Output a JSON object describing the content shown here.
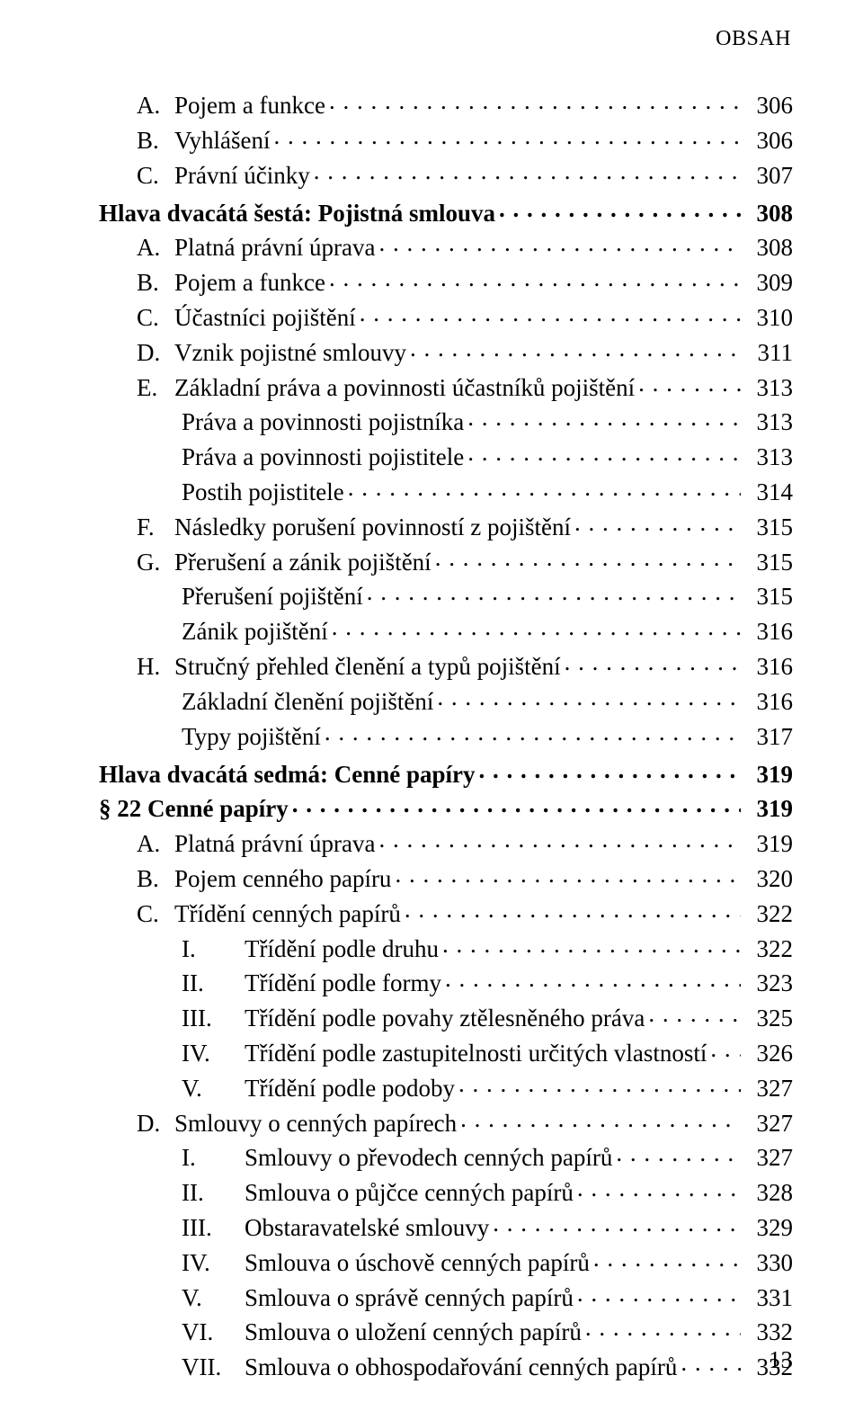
{
  "meta": {
    "header_label": "OBSAH",
    "page_number": "13",
    "colors": {
      "text": "#000000",
      "background": "#ffffff"
    },
    "font": {
      "family": "Times New Roman",
      "base_size_pt": 20
    }
  },
  "toc": [
    {
      "indent": "ind1",
      "marker": "A.",
      "text": "Pojem a funkce",
      "page": "306"
    },
    {
      "indent": "ind1",
      "marker": "B.",
      "text": "Vyhlášení",
      "page": "306"
    },
    {
      "indent": "ind1",
      "marker": "C.",
      "text": "Právní účinky",
      "page": "307"
    },
    {
      "indent": "ind0",
      "bold": true,
      "gap": true,
      "text": "Hlava dvacátá šestá: Pojistná smlouva",
      "page": "308"
    },
    {
      "indent": "ind1",
      "marker": "A.",
      "text": "Platná právní úprava",
      "page": "308"
    },
    {
      "indent": "ind1",
      "marker": "B.",
      "text": "Pojem a funkce",
      "page": "309"
    },
    {
      "indent": "ind1",
      "marker": "C.",
      "text": "Účastníci pojištění",
      "page": "310"
    },
    {
      "indent": "ind1",
      "marker": "D.",
      "text": "Vznik pojistné smlouvy",
      "page": "311"
    },
    {
      "indent": "ind1",
      "marker": "E.",
      "text": "Základní práva a povinnosti účastníků pojištění",
      "page": "313"
    },
    {
      "indent": "ind2",
      "text": "Práva a povinnosti pojistníka",
      "page": "313"
    },
    {
      "indent": "ind2",
      "text": "Práva a povinnosti pojistitele",
      "page": "313"
    },
    {
      "indent": "ind2",
      "text": "Postih pojistitele",
      "page": "314"
    },
    {
      "indent": "ind1",
      "marker": "F.",
      "text": "Následky porušení povinností z pojištění",
      "page": "315"
    },
    {
      "indent": "ind1",
      "marker": "G.",
      "text": "Přerušení a zánik pojištění",
      "page": "315"
    },
    {
      "indent": "ind2",
      "text": "Přerušení pojištění",
      "page": "315"
    },
    {
      "indent": "ind2",
      "text": "Zánik pojištění",
      "page": "316"
    },
    {
      "indent": "ind1",
      "marker": "H.",
      "text": "Stručný přehled členění a typů pojištění",
      "page": "316"
    },
    {
      "indent": "ind2",
      "text": "Základní členění pojištění",
      "page": "316"
    },
    {
      "indent": "ind2",
      "text": "Typy pojištění",
      "page": "317"
    },
    {
      "indent": "ind0",
      "bold": true,
      "gap": true,
      "text": "Hlava dvacátá sedmá: Cenné papíry",
      "page": "319"
    },
    {
      "indent": "ind0",
      "bold": true,
      "text": "§ 22 Cenné papíry",
      "page": "319"
    },
    {
      "indent": "ind1",
      "marker": "A.",
      "text": "Platná právní úprava",
      "page": "319"
    },
    {
      "indent": "ind1",
      "marker": "B.",
      "text": "Pojem cenného papíru",
      "page": "320"
    },
    {
      "indent": "ind1",
      "marker": "C.",
      "text": "Třídění cenných papírů",
      "page": "322"
    },
    {
      "indent": "ind3",
      "roman": "I.",
      "text": "Třídění podle druhu",
      "page": "322"
    },
    {
      "indent": "ind3",
      "roman": "II.",
      "text": "Třídění podle formy",
      "page": "323"
    },
    {
      "indent": "ind3",
      "roman": "III.",
      "text": "Třídění podle povahy ztělesněného práva",
      "page": "325"
    },
    {
      "indent": "ind3",
      "roman": "IV.",
      "text": "Třídění podle zastupitelnosti určitých vlastností",
      "page": "326"
    },
    {
      "indent": "ind3",
      "roman": "V.",
      "text": "Třídění podle podoby",
      "page": "327"
    },
    {
      "indent": "ind1",
      "marker": "D.",
      "text": "Smlouvy o cenných papírech",
      "page": "327"
    },
    {
      "indent": "ind3",
      "roman": "I.",
      "text": "Smlouvy o převodech cenných papírů",
      "page": "327"
    },
    {
      "indent": "ind3",
      "roman": "II.",
      "text": "Smlouva o půjčce cenných papírů",
      "page": "328"
    },
    {
      "indent": "ind3",
      "roman": "III.",
      "text": "Obstaravatelské smlouvy",
      "page": "329"
    },
    {
      "indent": "ind3",
      "roman": "IV.",
      "text": "Smlouva o úschově cenných papírů",
      "page": "330"
    },
    {
      "indent": "ind3",
      "roman": "V.",
      "text": "Smlouva o správě cenných papírů",
      "page": "331"
    },
    {
      "indent": "ind3",
      "roman": "VI.",
      "text": "Smlouva o uložení cenných papírů",
      "page": "332"
    },
    {
      "indent": "ind3",
      "roman": "VII.",
      "text": "Smlouva o obhospodařování cenných papírů",
      "page": "332"
    }
  ]
}
